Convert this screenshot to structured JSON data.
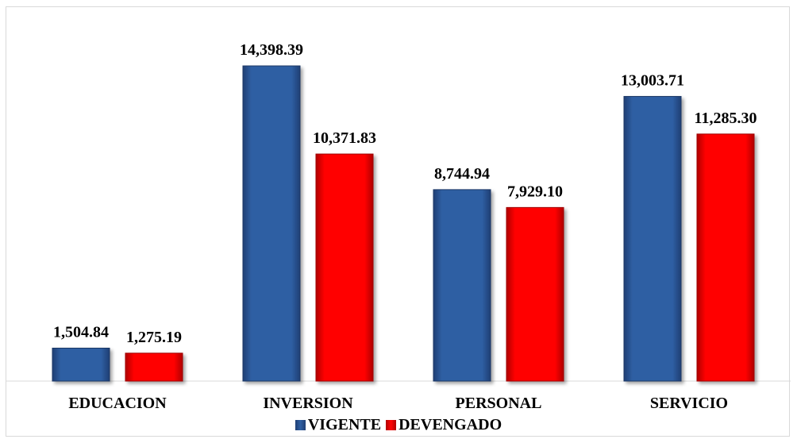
{
  "chart_data": {
    "type": "bar",
    "categories": [
      "EDUCACION",
      "INVERSION",
      "PERSONAL",
      "SERVICIO"
    ],
    "series": [
      {
        "name": "VIGENTE",
        "values": [
          1504.84,
          14398.39,
          8744.94,
          13003.71
        ],
        "labels": [
          "1,504.84",
          "14,398.39",
          "8,744.94",
          "13,003.71"
        ],
        "color": "#2e5c9e"
      },
      {
        "name": "DEVENGADO",
        "values": [
          1275.19,
          10371.83,
          7929.1,
          11285.3
        ],
        "labels": [
          "1,275.19",
          "10,371.83",
          "7,929.10",
          "11,285.30"
        ],
        "color": "#ee0000"
      }
    ],
    "ylim": [
      0,
      16000
    ],
    "grid": false,
    "legend": "bottom",
    "title": "",
    "xlabel": "",
    "ylabel": ""
  }
}
